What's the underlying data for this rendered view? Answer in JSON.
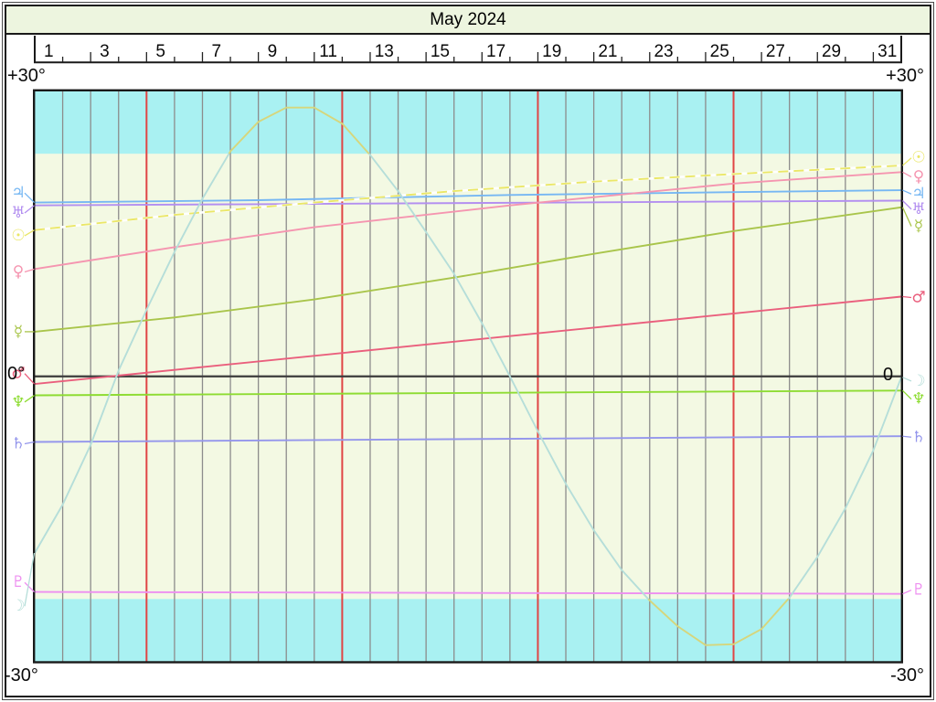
{
  "header": {
    "title": "May 2024"
  },
  "axis": {
    "top_left": "+30°",
    "top_right": "+30°",
    "zero_left": "0°",
    "zero_right": "0",
    "bottom_left": "-30°",
    "bottom_right": "-30°"
  },
  "chart_data": {
    "type": "line",
    "title": "May 2024",
    "x_range": [
      1,
      31
    ],
    "y_range": [
      -30,
      30
    ],
    "y_unit": "degrees declination",
    "day_labels": [
      1,
      3,
      5,
      7,
      9,
      11,
      13,
      15,
      17,
      19,
      21,
      23,
      25,
      27,
      29,
      31
    ],
    "week_marker_days": [
      5,
      12,
      19,
      26
    ],
    "out_of_bounds_limit": 23.44,
    "grid": true,
    "legend_position": "chart-edges",
    "colors": {
      "background": "#f3f9e3",
      "out_of_bounds_band": "#a9f1f2",
      "grid_line": "#8c8c8c",
      "week_line": "#e04545",
      "zero_line": "#3c3c3c",
      "frame": "#1a1a1a",
      "header_bg": "#edf5df",
      "label_text": "#0a0a0a"
    },
    "series": [
      {
        "name": "pluto",
        "glyph": "♇",
        "color": "#ee8ff0",
        "left_glyph_dec": -21.7,
        "right_glyph_dec": -22.5,
        "points": [
          [
            0,
            -22.7
          ],
          [
            31,
            -22.9
          ]
        ]
      },
      {
        "name": "saturn",
        "glyph": "♄",
        "color": "#9496ec",
        "left_glyph_dec": -7.1,
        "right_glyph_dec": -6.4,
        "points": [
          [
            0,
            -6.9
          ],
          [
            31,
            -6.3
          ]
        ]
      },
      {
        "name": "neptune",
        "glyph": "♆",
        "color": "#8edc33",
        "left_glyph_dec": -2.7,
        "right_glyph_dec": -2.4,
        "points": [
          [
            0,
            -2.0
          ],
          [
            31,
            -1.5
          ]
        ]
      },
      {
        "name": "uranus",
        "glyph": "♅",
        "color": "#b38ff0",
        "left_glyph_dec": 17.2,
        "right_glyph_dec": 17.6,
        "points": [
          [
            0,
            18.0
          ],
          [
            31,
            18.5
          ]
        ]
      },
      {
        "name": "jupiter",
        "glyph": "♃",
        "color": "#76b7f3",
        "left_glyph_dec": 19.3,
        "right_glyph_dec": 19.2,
        "points": [
          [
            0,
            18.3
          ],
          [
            8,
            18.55
          ],
          [
            17,
            19.1
          ],
          [
            25,
            19.4
          ],
          [
            31,
            19.6
          ]
        ]
      },
      {
        "name": "sun",
        "glyph": "☉",
        "color": "#eae767",
        "underlay": "#ffffff",
        "dash": [
          11,
          6
        ],
        "left_glyph_dec": 14.8,
        "right_glyph_dec": 23.0,
        "points": [
          [
            0,
            15.4
          ],
          [
            5,
            17.0
          ],
          [
            10,
            18.3
          ],
          [
            15,
            19.5
          ],
          [
            20,
            20.5
          ],
          [
            25,
            21.3
          ],
          [
            31,
            22.2
          ]
        ]
      },
      {
        "name": "mercury",
        "glyph": "☿",
        "color": "#a9c54b",
        "left_glyph_dec": 4.7,
        "right_glyph_dec": 15.8,
        "points": [
          [
            0,
            4.7
          ],
          [
            5,
            6.2
          ],
          [
            10,
            8.1
          ],
          [
            15,
            10.4
          ],
          [
            20,
            12.9
          ],
          [
            25,
            15.3
          ],
          [
            31,
            17.8
          ]
        ]
      },
      {
        "name": "venus",
        "glyph": "♀",
        "color": "#f595b0",
        "left_glyph_dec": 11.0,
        "right_glyph_dec": 21.0,
        "points": [
          [
            0,
            11.3
          ],
          [
            5,
            13.6
          ],
          [
            10,
            15.7
          ],
          [
            17,
            18.0
          ],
          [
            25,
            20.3
          ],
          [
            31,
            21.5
          ]
        ]
      },
      {
        "name": "mars",
        "glyph": "♂",
        "color": "#ea5f7d",
        "left_glyph_dec": 0.3,
        "right_glyph_dec": 8.3,
        "points": [
          [
            0,
            -0.8
          ],
          [
            31,
            8.4
          ]
        ]
      },
      {
        "name": "moon",
        "glyph": "☽",
        "color": "#b5ded9",
        "oob_color": "#d6d67c",
        "left_glyph_dec": -24.2,
        "right_glyph_dec": -0.5,
        "points": [
          [
            0,
            -18.6
          ],
          [
            1,
            -13.5
          ],
          [
            2,
            -7.2
          ],
          [
            3,
            0.6
          ],
          [
            4,
            7.0
          ],
          [
            5,
            13.1
          ],
          [
            6,
            18.7
          ],
          [
            7,
            23.7
          ],
          [
            8,
            26.8
          ],
          [
            9,
            28.3
          ],
          [
            10,
            28.3
          ],
          [
            11,
            26.6
          ],
          [
            12,
            23.3
          ],
          [
            13,
            19.5
          ],
          [
            14,
            15.2
          ],
          [
            15,
            10.8
          ],
          [
            16,
            5.6
          ],
          [
            17,
            0.0
          ],
          [
            18,
            -5.8
          ],
          [
            19,
            -11.3
          ],
          [
            20,
            -16.2
          ],
          [
            21,
            -20.4
          ],
          [
            22,
            -23.6
          ],
          [
            23,
            -26.3
          ],
          [
            24,
            -28.3
          ],
          [
            25,
            -28.2
          ],
          [
            26,
            -26.6
          ],
          [
            27,
            -23.3
          ],
          [
            28,
            -19.0
          ],
          [
            29,
            -13.9
          ],
          [
            30,
            -7.8
          ],
          [
            31,
            -0.1
          ]
        ]
      }
    ]
  }
}
